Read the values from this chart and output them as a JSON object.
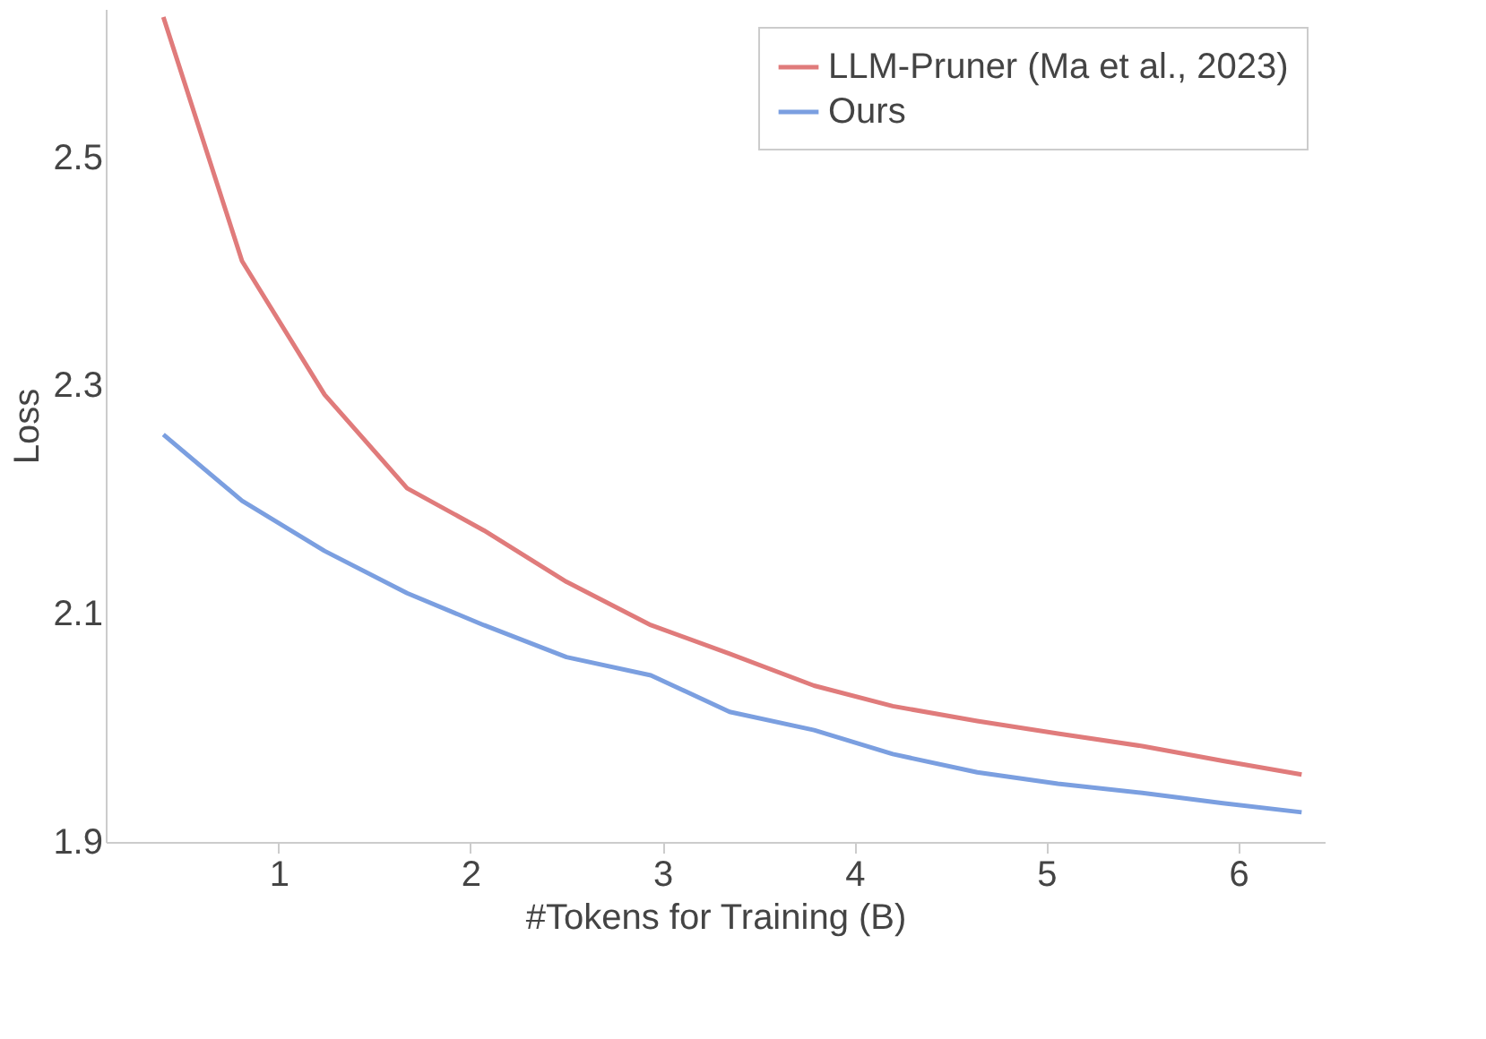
{
  "chart_data": {
    "type": "line",
    "xlabel": "#Tokens for Training (B)",
    "ylabel": "Loss",
    "xlim": [
      0.1,
      6.45
    ],
    "xticks": [
      1,
      2,
      3,
      4,
      5,
      6
    ],
    "ylim": [
      1.9,
      2.63
    ],
    "yticks": [
      1.9,
      2.1,
      2.3,
      2.5
    ],
    "grid": false,
    "legend": "top right",
    "marker": "none",
    "line_style": "solid",
    "x": [
      0.4,
      0.81,
      1.24,
      1.67,
      2.07,
      2.5,
      2.94,
      3.35,
      3.79,
      4.2,
      4.64,
      5.06,
      5.5,
      5.92,
      6.33
    ],
    "series": [
      {
        "name": "LLM-Pruner (Ma et al., 2023)",
        "color": "#e07b7b",
        "values": [
          2.623,
          2.409,
          2.292,
          2.21,
          2.173,
          2.128,
          2.09,
          2.065,
          2.037,
          2.019,
          2.006,
          1.995,
          1.984,
          1.971,
          1.959
        ]
      },
      {
        "name": "Ours",
        "color": "#7b9fe0",
        "values": [
          2.257,
          2.199,
          2.155,
          2.118,
          2.09,
          2.062,
          2.046,
          2.014,
          1.998,
          1.977,
          1.961,
          1.951,
          1.943,
          1.934,
          1.926
        ]
      }
    ]
  }
}
